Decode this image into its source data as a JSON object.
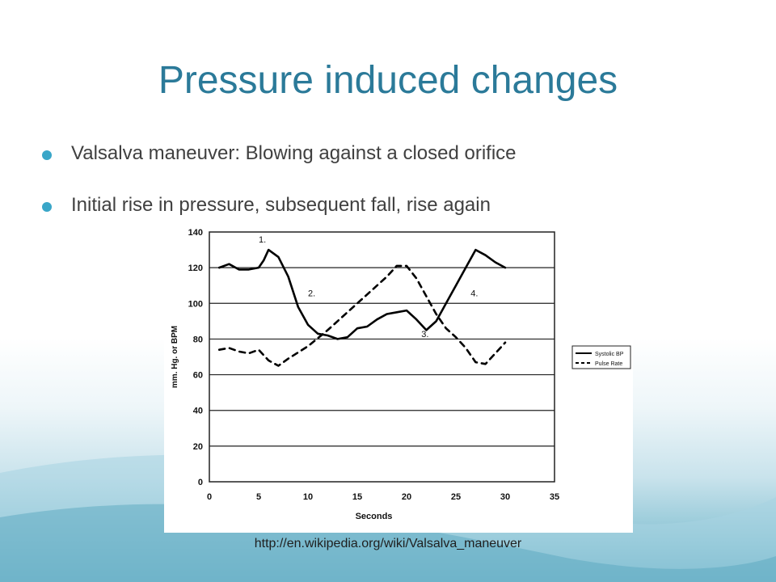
{
  "slide": {
    "title": "Pressure induced changes",
    "bullets": [
      "Valsalva maneuver: Blowing against a closed orifice",
      "Initial rise in pressure, subsequent fall, rise again"
    ],
    "source": "http://en.wikipedia.org/wiki/Valsalva_maneuver"
  },
  "colors": {
    "title": "#2b7a99",
    "bullet": "#39a6c8",
    "text": "#404040"
  },
  "chart_data": {
    "type": "line",
    "xlabel": "Seconds",
    "ylabel": "mm. Hg. or BPM",
    "xlim": [
      0,
      35
    ],
    "ylim": [
      0,
      140
    ],
    "xticks": [
      0,
      5,
      10,
      15,
      20,
      25,
      30,
      35
    ],
    "yticks": [
      0,
      20,
      40,
      60,
      80,
      100,
      120,
      140
    ],
    "grid": "horizontal",
    "legend_position": "right",
    "annotations": [
      {
        "text": "1.",
        "x": 5,
        "y": 134
      },
      {
        "text": "2.",
        "x": 10,
        "y": 104
      },
      {
        "text": "3.",
        "x": 21.5,
        "y": 81
      },
      {
        "text": "4.",
        "x": 26.5,
        "y": 104
      }
    ],
    "series": [
      {
        "name": "Systolic BP",
        "style": "solid",
        "x": [
          1,
          2,
          3,
          4,
          5,
          5.5,
          6,
          7,
          8,
          9,
          10,
          11,
          12,
          13,
          14,
          15,
          16,
          17,
          18,
          19,
          20,
          21,
          22,
          23,
          24,
          25,
          26,
          27,
          28,
          29,
          30
        ],
        "y": [
          120,
          122,
          119,
          119,
          120,
          124,
          130,
          126,
          115,
          98,
          88,
          83,
          82,
          80,
          81,
          86,
          87,
          91,
          94,
          95,
          96,
          91,
          85,
          90,
          100,
          110,
          120,
          130,
          127,
          123,
          120
        ]
      },
      {
        "name": "Pulse Rate",
        "style": "dashed",
        "x": [
          1,
          2,
          3,
          4,
          5,
          6,
          7,
          8,
          10,
          12,
          14,
          16,
          18,
          19,
          20,
          21,
          22,
          23,
          24,
          25,
          26,
          27,
          28,
          29,
          30
        ],
        "y": [
          74,
          75,
          73,
          72,
          74,
          68,
          65,
          69,
          76,
          85,
          95,
          105,
          115,
          121,
          121,
          114,
          104,
          94,
          86,
          81,
          75,
          67,
          66,
          72,
          78
        ]
      }
    ]
  }
}
